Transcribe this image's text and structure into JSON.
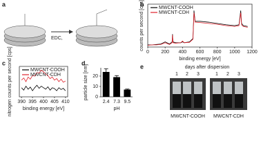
{
  "panels": {
    "a": {
      "label": "a",
      "reagent": "EDC,"
    },
    "e": {
      "label": "e",
      "title": "days after dispersion",
      "days": [
        "1",
        "2",
        "3",
        "1",
        "2",
        "3"
      ],
      "samples": [
        "MWCNT-COOH",
        "MWCNT-CDH"
      ]
    }
  },
  "chart_data": [
    {
      "type": "line",
      "panel": "b",
      "xlabel": "binding energy [eV]",
      "ylabel": "counts per second [cps]",
      "x": [
        0,
        50,
        100,
        150,
        200,
        250,
        280,
        285,
        290,
        320,
        380,
        400,
        420,
        480,
        520,
        532,
        545,
        600,
        700,
        800,
        900,
        1000,
        1050,
        1070,
        1080,
        1100,
        1150
      ],
      "series": [
        {
          "name": "MWCNT-COOH",
          "color": "#000000",
          "values": [
            0.05,
            0.05,
            0.06,
            0.07,
            0.12,
            0.07,
            0.12,
            0.3,
            0.12,
            0.1,
            0.1,
            0.12,
            0.1,
            0.12,
            0.2,
            0.85,
            0.6,
            0.6,
            0.58,
            0.55,
            0.52,
            0.5,
            0.52,
            0.85,
            0.55,
            0.5,
            0.48
          ]
        },
        {
          "name": "MWCNT-CDH",
          "color": "#e0202a",
          "values": [
            0.04,
            0.05,
            0.05,
            0.06,
            0.1,
            0.06,
            0.1,
            0.28,
            0.1,
            0.09,
            0.1,
            0.14,
            0.1,
            0.11,
            0.18,
            0.8,
            0.58,
            0.57,
            0.55,
            0.53,
            0.5,
            0.48,
            0.5,
            0.8,
            0.52,
            0.48,
            0.46
          ]
        }
      ],
      "xlim": [
        0,
        1200
      ],
      "xticks": [
        0,
        200,
        400,
        600,
        800,
        1000,
        1200
      ],
      "ylim": [
        0,
        1
      ]
    },
    {
      "type": "line",
      "panel": "c",
      "xlabel": "binding energy [eV]",
      "ylabel": "nitrogen counts per second [cps]",
      "x": [
        390,
        391,
        392,
        393,
        394,
        395,
        396,
        397,
        398,
        399,
        400,
        401,
        402,
        403,
        404,
        405,
        406,
        407,
        408,
        409,
        410
      ],
      "series": [
        {
          "name": "MWCNT-COOH",
          "color": "#000000",
          "values": [
            0.3,
            0.22,
            0.35,
            0.25,
            0.32,
            0.2,
            0.3,
            0.38,
            0.28,
            0.35,
            0.3,
            0.25,
            0.33,
            0.22,
            0.3,
            0.27,
            0.2,
            0.3,
            0.24,
            0.28,
            0.2
          ]
        },
        {
          "name": "MWCNT-CDH",
          "color": "#e0202a",
          "values": [
            0.55,
            0.62,
            0.5,
            0.65,
            0.58,
            0.7,
            0.68,
            0.8,
            0.78,
            0.88,
            0.82,
            0.75,
            0.7,
            0.6,
            0.65,
            0.55,
            0.6,
            0.5,
            0.58,
            0.48,
            0.52
          ]
        }
      ],
      "xlim": [
        389,
        411
      ],
      "xticks": [
        390,
        395,
        400,
        405,
        410
      ],
      "ylim": [
        0,
        1
      ]
    },
    {
      "type": "bar",
      "panel": "d",
      "xlabel": "pH",
      "ylabel": "particle size [nm]",
      "categories": [
        "2.4",
        "7.3",
        "9.5"
      ],
      "values": [
        24,
        19,
        7
      ],
      "errors": [
        3,
        1.5,
        0.5
      ],
      "color": "#000000",
      "ylim": [
        0,
        28
      ],
      "yticks": [
        0,
        10,
        20
      ]
    }
  ]
}
